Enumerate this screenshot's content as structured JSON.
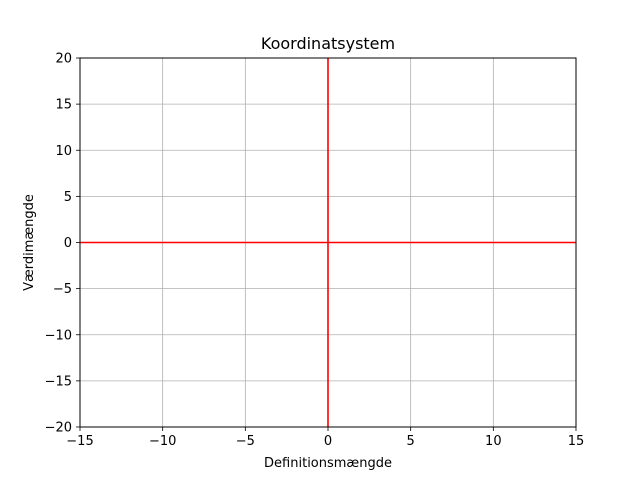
{
  "chart_data": {
    "type": "line",
    "title": "Koordinatsystem",
    "xlabel": "Definitionsmængde",
    "ylabel": "Værdimængde",
    "xlim": [
      -15,
      15
    ],
    "ylim": [
      -20,
      20
    ],
    "x_ticks": [
      -15,
      -10,
      -5,
      0,
      5,
      10,
      15
    ],
    "y_ticks": [
      -20,
      -15,
      -10,
      -5,
      0,
      5,
      10,
      15,
      20
    ],
    "x_tick_labels": [
      "−15",
      "−10",
      "−5",
      "0",
      "5",
      "10",
      "15"
    ],
    "y_tick_labels": [
      "−20",
      "−15",
      "−10",
      "−5",
      "0",
      "5",
      "10",
      "15",
      "20"
    ],
    "grid": true,
    "series": [
      {
        "x": [
          -15,
          15
        ],
        "y": [
          0,
          0
        ],
        "color": "#ff0000"
      },
      {
        "x": [
          0,
          0
        ],
        "y": [
          -20,
          20
        ],
        "color": "#ff0000"
      }
    ],
    "colors": {
      "grid": "#b0b0b0",
      "axes": "#000000",
      "lines": "#ff0000"
    }
  }
}
